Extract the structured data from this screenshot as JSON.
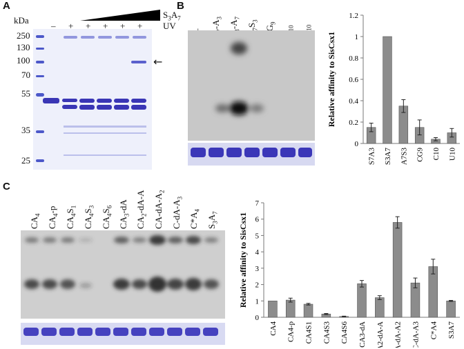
{
  "panels": {
    "A": {
      "label": "A",
      "unit": "kDa",
      "markers": [
        "250",
        "130",
        "100",
        "70",
        "55",
        "35",
        "25"
      ],
      "signs": [
        "–",
        "+",
        "+",
        "+",
        "+",
        "+"
      ],
      "uv_label": "UV",
      "gradient_label": "S",
      "gradient_sub1": "3",
      "gradient_mid": "A",
      "gradient_sub2": "7",
      "arrow": "←"
    },
    "B": {
      "label": "B",
      "lanes": [
        {
          "main": "–",
          "parts": []
        },
        {
          "parts": [
            [
              "S",
              "7"
            ],
            [
              "A",
              "3"
            ]
          ]
        },
        {
          "parts": [
            [
              "S",
              "3"
            ],
            [
              "A",
              "7"
            ]
          ]
        },
        {
          "parts": [
            [
              "A",
              "7"
            ],
            [
              "S",
              "3"
            ]
          ]
        },
        {
          "parts": [
            [
              "CG",
              "9"
            ]
          ]
        },
        {
          "parts": [
            [
              "C",
              "10"
            ]
          ]
        },
        {
          "parts": [
            [
              "U",
              "10"
            ]
          ]
        }
      ]
    },
    "C": {
      "label": "C",
      "lanes": [
        {
          "parts": [
            [
              "CA",
              "4"
            ]
          ]
        },
        {
          "parts": [
            [
              "CA",
              "4"
            ],
            [
              "-p",
              ""
            ]
          ]
        },
        {
          "parts": [
            [
              "CA",
              "4"
            ],
            [
              "S",
              "1"
            ]
          ]
        },
        {
          "parts": [
            [
              "CA",
              "4"
            ],
            [
              "S",
              "3"
            ]
          ]
        },
        {
          "parts": [
            [
              "CA",
              "4"
            ],
            [
              "S",
              "6"
            ]
          ]
        },
        {
          "parts": [
            [
              "CA",
              "3"
            ],
            [
              "-dA",
              ""
            ]
          ]
        },
        {
          "parts": [
            [
              "CA",
              "2"
            ],
            [
              "-dA-A",
              ""
            ]
          ]
        },
        {
          "parts": [
            [
              "CA-dA-A",
              "2"
            ]
          ]
        },
        {
          "parts": [
            [
              "C-dA-A",
              "3"
            ]
          ]
        },
        {
          "parts": [
            [
              "C*A",
              "4"
            ]
          ]
        },
        {
          "parts": [
            [
              "S",
              "3"
            ],
            [
              "A",
              "7"
            ]
          ]
        }
      ]
    }
  },
  "chart_data": [
    {
      "type": "bar",
      "categories": [
        "S7A3",
        "S3A7",
        "A7S3",
        "CG9",
        "C10",
        "U10"
      ],
      "values": [
        0.15,
        1.0,
        0.35,
        0.15,
        0.04,
        0.1
      ],
      "errors": [
        0.04,
        0.0,
        0.06,
        0.07,
        0.015,
        0.04
      ],
      "ylabel": "Relative affinity to SisCsx1",
      "ylim": [
        0,
        1.2
      ],
      "yticks": [
        "0",
        "0.2",
        "0.4",
        "0.6",
        "0.8",
        "1",
        "1.2"
      ],
      "bar_color": "#8c8c8c"
    },
    {
      "type": "bar",
      "categories": [
        "CA4",
        "CA4-p",
        "CA4S1",
        "CA4S3",
        "CA4S6",
        "CA3-dA",
        "CA2-dA-A",
        "CA-dA-A2",
        "C-dA-A3",
        "C*A4",
        "S3A7"
      ],
      "values": [
        1.0,
        1.05,
        0.8,
        0.2,
        0.05,
        2.05,
        1.2,
        5.8,
        2.1,
        3.1,
        1.0
      ],
      "errors": [
        0.0,
        0.12,
        0.05,
        0.03,
        0.02,
        0.2,
        0.12,
        0.35,
        0.3,
        0.45,
        0.03
      ],
      "ylabel": "Relative affinity to SisCsx1",
      "ylim": [
        0,
        7
      ],
      "yticks": [
        "0",
        "1",
        "2",
        "3",
        "4",
        "5",
        "6",
        "7"
      ],
      "bar_color": "#8c8c8c"
    }
  ],
  "colors": {
    "gel_bg": "#f1f3fb",
    "coomassie": "#3b37b8",
    "marker": "#4a56c8",
    "phosphor_bg": "#c9c9c9",
    "band_dark": "#1c1c1c"
  }
}
